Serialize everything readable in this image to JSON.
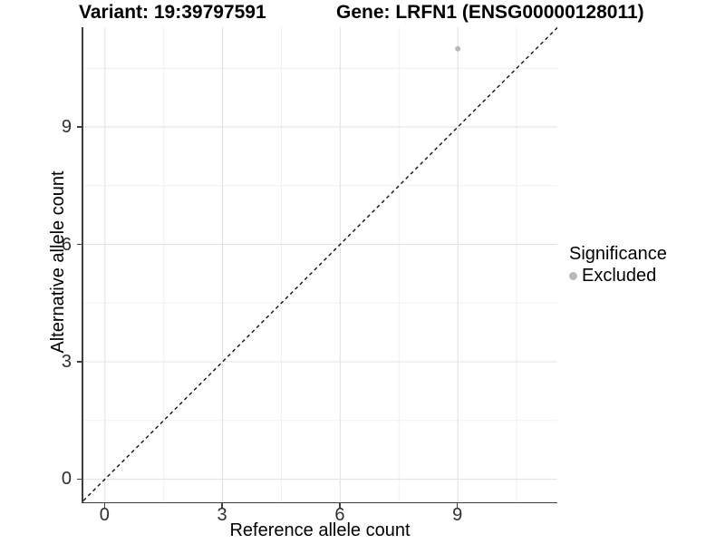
{
  "titles": {
    "variant": "Variant: 19:39797591",
    "gene": "Gene: LRFN1 (ENSG00000128011)"
  },
  "chart_data": {
    "type": "scatter",
    "title_left": "Variant: 19:39797591",
    "title_right": "Gene: LRFN1 (ENSG00000128011)",
    "xlabel": "Reference allele count",
    "ylabel": "Alternative allele count",
    "xlim": [
      -0.55,
      11.55
    ],
    "ylim": [
      -0.58,
      11.55
    ],
    "x_major_ticks": [
      0,
      3,
      6,
      9
    ],
    "y_major_ticks": [
      0,
      3,
      6,
      9
    ],
    "x_minor_ticks": [
      1.5,
      4.5,
      7.5,
      10.5
    ],
    "y_minor_ticks": [
      1.5,
      4.5,
      7.5,
      10.5
    ],
    "grid": true,
    "points": [
      {
        "x": 9,
        "y": 11,
        "series": "Excluded"
      }
    ],
    "reference_line": {
      "type": "identity y=x",
      "style": "dashed",
      "color": "#111111"
    },
    "legend": {
      "title": "Significance",
      "position": "right",
      "items": [
        {
          "label": "Excluded",
          "color": "#b9b9b9"
        }
      ]
    },
    "colors": {
      "grid_major": "#e3e3e3",
      "grid_minor": "#f0f0f0",
      "axis_line": "#3f3f3f"
    }
  }
}
